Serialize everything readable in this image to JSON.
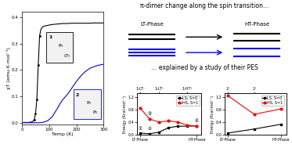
{
  "title": "π-dimer change along the spin transition…",
  "subtitle": "… explained by a study of their PES",
  "annotations": [
    "LT-Phase",
    "HT-Phase"
  ],
  "chart_data": [
    {
      "type": "line",
      "xlabel": "Temp (K)",
      "ylabel": "χT (emu·K·mol⁻¹)",
      "xlim": [
        0,
        300
      ],
      "xticks": [
        0,
        100,
        200,
        300
      ],
      "ylim": [
        -0.005,
        0.42
      ],
      "yticks": [
        0.0,
        0.1,
        0.2,
        0.3,
        0.4
      ],
      "annotations": [
        [
          "1",
          "Ph",
          "CF₃"
        ],
        [
          "2",
          "Ph",
          "Ph"
        ]
      ],
      "series": [
        {
          "color": "black",
          "line_style": "solid",
          "x": [
            5,
            10,
            15,
            20,
            25,
            30,
            35,
            40,
            45,
            50,
            55,
            60,
            65,
            70,
            75,
            80,
            85,
            90,
            95,
            100,
            110,
            120,
            130,
            140,
            150,
            160,
            170,
            180,
            190,
            200,
            210,
            220,
            230,
            240,
            250,
            260,
            270,
            280,
            290,
            300
          ],
          "values": [
            0.002,
            0.002,
            0.002,
            0.002,
            0.002,
            0.003,
            0.004,
            0.006,
            0.012,
            0.035,
            0.09,
            0.22,
            0.33,
            0.355,
            0.362,
            0.365,
            0.367,
            0.368,
            0.369,
            0.37,
            0.372,
            0.373,
            0.374,
            0.375,
            0.376,
            0.376,
            0.376,
            0.377,
            0.377,
            0.377,
            0.377,
            0.377,
            0.377,
            0.377,
            0.377,
            0.378,
            0.378,
            0.378,
            0.378,
            0.378
          ]
        },
        {
          "color": "blue",
          "line_style": "solid",
          "x": [
            5,
            10,
            15,
            20,
            25,
            30,
            35,
            40,
            45,
            50,
            55,
            60,
            65,
            70,
            75,
            80,
            85,
            90,
            95,
            100,
            110,
            120,
            130,
            140,
            150,
            160,
            170,
            180,
            190,
            200,
            210,
            220,
            230,
            240,
            250,
            260,
            270,
            280,
            290,
            300
          ],
          "values": [
            0.001,
            0.001,
            0.001,
            0.001,
            0.001,
            0.001,
            0.001,
            0.001,
            0.001,
            0.001,
            0.001,
            0.001,
            0.001,
            0.002,
            0.002,
            0.003,
            0.005,
            0.007,
            0.009,
            0.013,
            0.022,
            0.038,
            0.055,
            0.073,
            0.088,
            0.1,
            0.112,
            0.127,
            0.142,
            0.157,
            0.17,
            0.182,
            0.192,
            0.2,
            0.207,
            0.211,
            0.215,
            0.218,
            0.22,
            0.222
          ]
        },
        {
          "type": "scatter",
          "color": "black",
          "marker": "circle",
          "x": [
            45,
            50,
            55,
            60,
            65
          ],
          "values": [
            0.012,
            0.035,
            0.09,
            0.22,
            0.33
          ]
        }
      ]
    },
    {
      "type": "line",
      "ylabel": "Energy (Kcal·mol⁻¹)",
      "xlim": [
        -0.15,
        3.25
      ],
      "xticks": [
        {
          "value": 0,
          "label": "LT-Phase"
        },
        {
          "value": 3.0,
          "label": "HT-Phase"
        }
      ],
      "x2ticks": [
        {
          "value": 0,
          "label": "1-LT¹"
        },
        {
          "value": 1.0,
          "label": "1-LT²"
        },
        {
          "value": 2.5,
          "label": "1-HT²"
        }
      ],
      "ylim": [
        0,
        1.32
      ],
      "yticks": [
        0.0,
        0.4,
        0.8,
        1.2
      ],
      "legend": "upper right",
      "annotations": [
        {
          "text": "①",
          "x": 0.0,
          "y": 0.05
        },
        {
          "text": "②",
          "x": 0.5,
          "y": 0.03
        },
        {
          "text": "③",
          "x": 0.5,
          "y": 0.5
        },
        {
          "text": "④",
          "x": 3.0,
          "y": 0.28
        }
      ],
      "series": [
        {
          "name": "LS, S=0",
          "color": "black",
          "marker": "square",
          "line_style": "solid",
          "x": [
            0.0,
            0.5,
            1.0,
            1.5,
            2.0,
            2.5,
            3.0
          ],
          "values": [
            0.05,
            0.03,
            0.08,
            0.22,
            0.27,
            0.27,
            0.28
          ]
        },
        {
          "name": "HS, S=1",
          "color": "red",
          "marker": "circle",
          "line_style": "solid",
          "x": [
            0.0,
            0.5,
            1.0,
            1.5,
            2.0,
            2.5,
            3.0
          ],
          "values": [
            0.85,
            0.5,
            0.4,
            0.44,
            0.4,
            0.3,
            0.28
          ]
        }
      ]
    },
    {
      "type": "line",
      "ylabel": "Energy (Kcal·mol⁻¹)",
      "xlim": [
        -0.1,
        2.2
      ],
      "xticks": [
        {
          "value": 0,
          "label": "LT-Phase"
        },
        {
          "value": 2.0,
          "label": "HT-Phase"
        }
      ],
      "x2ticks": [
        {
          "value": 0,
          "label": "2¹"
        },
        {
          "value": 1.0,
          "label": "2²"
        }
      ],
      "ylim": [
        0,
        1.32
      ],
      "yticks": [
        0.0,
        0.4,
        0.8,
        1.2
      ],
      "legend": "upper right",
      "series": [
        {
          "name": "LS, S=0",
          "color": "black",
          "marker": "square",
          "line_style": "solid",
          "x": [
            0.0,
            1.0,
            2.0
          ],
          "values": [
            0.05,
            0.18,
            0.33
          ]
        },
        {
          "name": "HS, S=1",
          "color": "red",
          "marker": "circle",
          "line_style": "solid",
          "x": [
            0.0,
            1.0,
            2.0
          ],
          "values": [
            1.25,
            0.65,
            0.82
          ]
        }
      ]
    }
  ]
}
